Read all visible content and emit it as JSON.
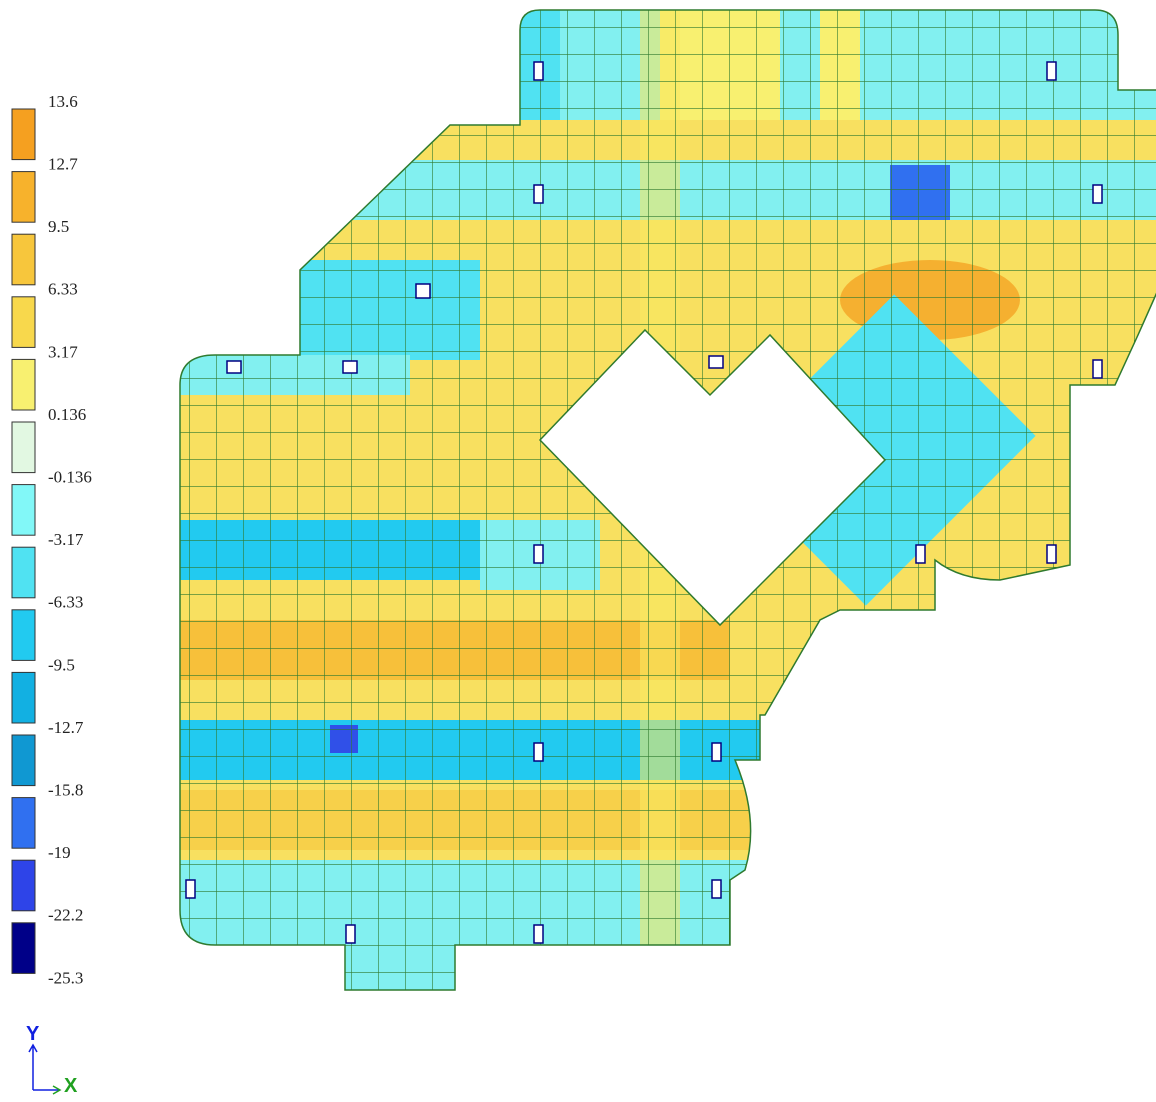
{
  "legend": {
    "labels": [
      "13.6",
      "12.7",
      "9.5",
      "6.33",
      "3.17",
      "0.136",
      "-0.136",
      "-3.17",
      "-6.33",
      "-9.5",
      "-12.7",
      "-15.8",
      "-19",
      "-22.2",
      "-25.3"
    ],
    "colors": [
      "#f5a020",
      "#f7b22c",
      "#f7c63c",
      "#f8d84c",
      "#f8f070",
      "#e2f8e2",
      "#82f8f8",
      "#50e2f2",
      "#22caf0",
      "#12b0e2",
      "#1098d2",
      "#3070f0",
      "#2e44e8",
      "#000088"
    ]
  },
  "axes": {
    "y": "Y",
    "x": "X"
  }
}
